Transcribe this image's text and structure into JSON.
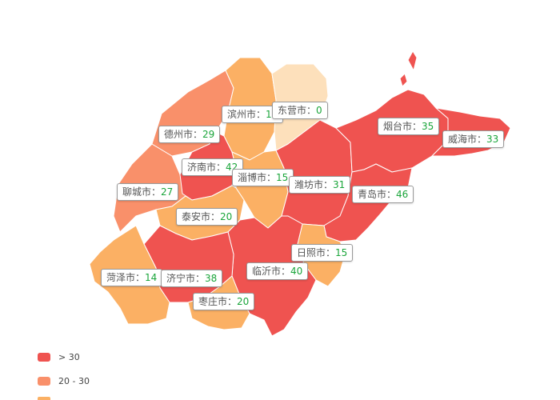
{
  "colors": {
    "high": "#ef5350",
    "mid": "#f9906a",
    "low": "#fbb064",
    "zero": "#fde0bb",
    "value_text": "#1aa53a"
  },
  "legend": [
    {
      "label": "> 30",
      "color": "#ef5350"
    },
    {
      "label": "20 - 30",
      "color": "#f9906a"
    }
  ],
  "cities": [
    {
      "id": "binzhou",
      "name": "滨州市",
      "value": "11"
    },
    {
      "id": "dongying",
      "name": "东营市",
      "value": "0"
    },
    {
      "id": "dezhou",
      "name": "德州市",
      "value": "29"
    },
    {
      "id": "yantai",
      "name": "烟台市",
      "value": "35"
    },
    {
      "id": "weihai",
      "name": "威海市",
      "value": "33"
    },
    {
      "id": "jinan",
      "name": "济南市",
      "value": "42"
    },
    {
      "id": "zibo",
      "name": "淄博市",
      "value": "15"
    },
    {
      "id": "weifang",
      "name": "潍坊市",
      "value": "31"
    },
    {
      "id": "qingdao",
      "name": "青岛市",
      "value": "46"
    },
    {
      "id": "liaocheng",
      "name": "聊城市",
      "value": "27"
    },
    {
      "id": "taian",
      "name": "泰安市",
      "value": "20"
    },
    {
      "id": "rizhao",
      "name": "日照市",
      "value": "15"
    },
    {
      "id": "linyi",
      "name": "临沂市",
      "value": "40"
    },
    {
      "id": "heze",
      "name": "菏泽市",
      "value": "14"
    },
    {
      "id": "jining",
      "name": "济宁市",
      "value": "38"
    },
    {
      "id": "zaozhuang",
      "name": "枣庄市",
      "value": "20"
    }
  ],
  "separator": "："
}
